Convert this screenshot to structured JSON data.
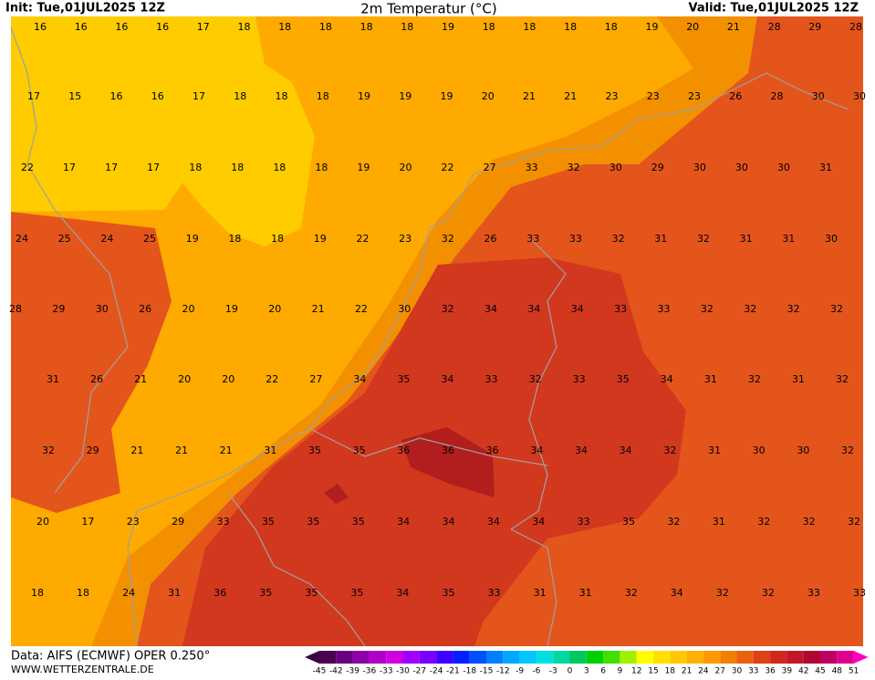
{
  "header": {
    "init": "Init: Tue,01JUL2025 12Z",
    "title": "2m Temperatur (°C)",
    "valid": "Valid: Tue,01JUL2025 12Z"
  },
  "map": {
    "rows": [
      [
        16,
        16,
        16,
        16,
        17,
        18,
        18,
        18,
        18,
        18,
        19,
        18,
        18,
        18,
        18,
        19,
        20,
        21,
        28,
        29,
        28
      ],
      [
        17,
        15,
        16,
        16,
        17,
        18,
        18,
        18,
        19,
        19,
        19,
        20,
        21,
        21,
        23,
        23,
        23,
        26,
        28,
        30,
        30
      ],
      [
        22,
        17,
        17,
        17,
        18,
        18,
        18,
        18,
        19,
        20,
        22,
        27,
        33,
        32,
        30,
        29,
        30,
        30,
        30,
        31
      ],
      [
        24,
        25,
        24,
        25,
        19,
        18,
        18,
        19,
        22,
        23,
        32,
        26,
        33,
        33,
        32,
        31,
        32,
        31,
        31,
        30
      ],
      [
        28,
        29,
        30,
        26,
        20,
        19,
        20,
        21,
        22,
        30,
        32,
        34,
        34,
        34,
        33,
        33,
        32,
        32,
        32,
        32
      ],
      [
        31,
        26,
        21,
        20,
        20,
        22,
        27,
        34,
        35,
        34,
        33,
        32,
        33,
        35,
        34,
        31,
        32,
        31,
        32
      ],
      [
        32,
        29,
        21,
        21,
        21,
        31,
        35,
        35,
        36,
        36,
        36,
        34,
        34,
        34,
        32,
        31,
        30,
        30,
        32
      ],
      [
        20,
        17,
        23,
        29,
        33,
        35,
        35,
        35,
        34,
        34,
        34,
        34,
        33,
        35,
        32,
        31,
        32,
        32,
        32
      ],
      [
        18,
        18,
        24,
        31,
        36,
        35,
        35,
        35,
        34,
        35,
        33,
        31,
        31,
        32,
        34,
        32,
        32,
        33,
        33
      ]
    ]
  },
  "footer": {
    "source": "Data: AIFS (ECMWF) OPER 0.250°",
    "site": "WWW.WETTERZENTRALE.DE"
  },
  "colorbar": {
    "labels": [
      -45,
      -42,
      -39,
      -36,
      -33,
      -30,
      -27,
      -24,
      -21,
      -18,
      -15,
      -12,
      -9,
      -6,
      -3,
      0,
      3,
      6,
      9,
      12,
      15,
      18,
      21,
      24,
      27,
      30,
      33,
      36,
      39,
      42,
      45,
      48,
      51
    ]
  }
}
